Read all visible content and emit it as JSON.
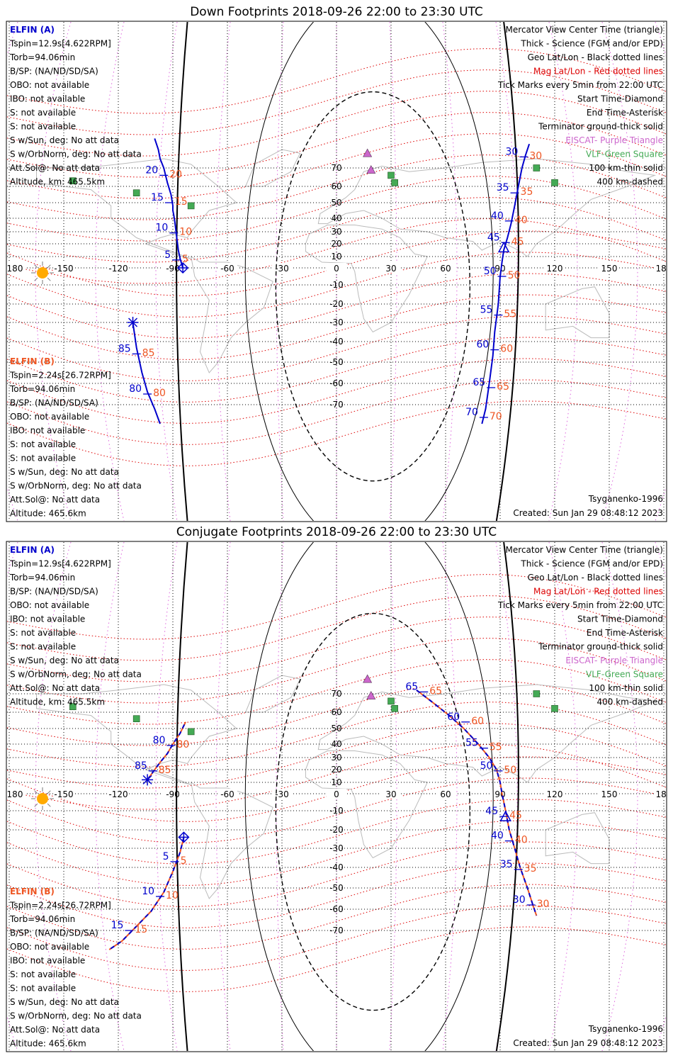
{
  "colors": {
    "track_a": "#0000cc",
    "track_b": "#ee5522",
    "elfin_b_text": "#ee5522",
    "mag_grid": "#dd0000",
    "geo_grid": "#000000",
    "eiscat": "#cc66cc",
    "vlf": "#44aa55",
    "sun": "#ffaa00",
    "coast": "#bbbbbb"
  },
  "panels": [
    {
      "title": "Down Footprints 2018-09-26 22:00 to 23:30 UTC",
      "left_info_a": [
        "ELFIN (A)",
        "Tspin=12.9s[4.622RPM]",
        "Torb=94.06min",
        "B/SP: (NA/ND/SD/SA)",
        "OBO: not available",
        "IBO: not available",
        "S: not available",
        "S: not available",
        "S w/Sun, deg: No att data",
        "S w/OrbNorm, deg: No att data",
        "Att.Sol@: No att data",
        "Altitude, km: 465.5km"
      ],
      "left_info_b": [
        "ELFIN (B)",
        "Tspin=2.24s[26.72RPM]",
        "Torb=94.06min",
        "B/SP: (NA/ND/SD/SA)",
        "OBO: not available",
        "IBO: not available",
        "S: not available",
        "S: not available",
        "S w/Sun, deg: No att data",
        "S w/OrbNorm, deg: No att data",
        "Att.Sol@: No att data",
        "Altitude: 465.6km"
      ],
      "legend": [
        "Mercator View Center Time (triangle)",
        "Thick - Science (FGM and/or EPD)",
        "Geo Lat/Lon - Black dotted lines",
        "Mag Lat/Lon - Red dotted lines",
        "Tick Marks every 5min from 22:00 UTC",
        "Start Time-Diamond",
        "End Time-Asterisk",
        "Terminator ground-thick solid",
        "EISCAT- Purple Triangle",
        "VLF-Green Square",
        "100 km-thin solid",
        "400 km-dashed"
      ],
      "model": "Tsyganenko-1996",
      "created": "Created: Sun Jan 29 08:48:12 2023",
      "lon_ticks": [
        "180",
        "-150",
        "-120",
        "-90",
        "-60",
        "-30",
        "0",
        "30",
        "60",
        "90",
        "120",
        "150",
        "180"
      ],
      "lat_ticks": [
        "70",
        "60",
        "50",
        "40",
        "30",
        "20",
        "10",
        "-10",
        "-20",
        "-30",
        "-40",
        "-50",
        "-60",
        "-70"
      ],
      "track_a": {
        "points": [
          [
            -100,
            86
          ],
          [
            -98,
            80
          ],
          [
            -97,
            75
          ],
          [
            -95,
            70
          ],
          [
            -93,
            62
          ],
          [
            -91,
            55
          ],
          [
            -90,
            48
          ],
          [
            -90,
            45
          ],
          [
            -89.5,
            42
          ],
          [
            -89,
            38
          ],
          [
            -88.5,
            33
          ],
          [
            -88,
            27
          ],
          [
            -87.5,
            21
          ],
          [
            -87,
            15
          ],
          [
            -86,
            8
          ],
          [
            -84.5,
            0
          ]
        ],
        "ticks": [
          {
            "label": "5",
            "lon": -88,
            "lat": 7
          },
          {
            "label": "10",
            "lon": -89.5,
            "lat": 29
          },
          {
            "label": "15",
            "lon": -92,
            "lat": 50
          },
          {
            "label": "20",
            "lon": -95,
            "lat": 66
          }
        ],
        "start": [
          -84.5,
          0
        ]
      },
      "track_a2": {
        "points": [
          [
            106,
            83
          ],
          [
            104,
            77
          ],
          [
            102,
            70
          ],
          [
            100,
            60
          ],
          [
            98,
            48
          ],
          [
            96,
            36
          ],
          [
            94,
            25
          ],
          [
            92,
            15
          ],
          [
            91,
            5
          ],
          [
            90,
            -5
          ],
          [
            89,
            -20
          ],
          [
            87,
            -35
          ],
          [
            86,
            -47
          ],
          [
            84,
            -60
          ],
          [
            82,
            -72
          ],
          [
            80,
            -79
          ]
        ],
        "ticks": [
          {
            "label": "30",
            "lon": 103,
            "lat": 76
          },
          {
            "label": "35",
            "lon": 98,
            "lat": 56
          },
          {
            "label": "40",
            "lon": 95,
            "lat": 38
          },
          {
            "label": "45",
            "lon": 93,
            "lat": 21
          },
          {
            "label": "50",
            "lon": 91,
            "lat": -5
          },
          {
            "label": "55",
            "lon": 89,
            "lat": -26
          },
          {
            "label": "60",
            "lon": 87,
            "lat": -44
          },
          {
            "label": "65",
            "lon": 85,
            "lat": -62
          },
          {
            "label": "70",
            "lon": 81,
            "lat": -76
          }
        ],
        "center": [
          92,
          17
        ]
      },
      "track_b": {
        "points": [
          [
            -112,
            -30
          ],
          [
            -110,
            -43
          ],
          [
            -107,
            -55
          ],
          [
            -104,
            -64
          ],
          [
            -100,
            -72
          ],
          [
            -97,
            -79
          ]
        ],
        "ticks": [
          {
            "label": "85",
            "lon": -110,
            "lat": -46
          },
          {
            "label": "80",
            "lon": -104,
            "lat": -65
          }
        ],
        "end": [
          -112,
          -30
        ]
      }
    },
    {
      "title": "Conjugate Footprints 2018-09-26 22:00 to 23:30 UTC",
      "left_info_a": [
        "ELFIN (A)",
        "Tspin=12.9s[4.622RPM]",
        "Torb=94.06min",
        "B/SP: (NA/ND/SD/SA)",
        "OBO: not available",
        "IBO: not available",
        "S: not available",
        "S: not available",
        "S w/Sun, deg: No att data",
        "S w/OrbNorm, deg: No att data",
        "Att.Sol@: No att data",
        "Altitude, km: 465.5km"
      ],
      "left_info_b": [
        "ELFIN (B)",
        "Tspin=2.24s[26.72RPM]",
        "Torb=94.06min",
        "B/SP: (NA/ND/SD/SA)",
        "OBO: not available",
        "IBO: not available",
        "S: not available",
        "S: not available",
        "S w/Sun, deg: No att data",
        "S w/OrbNorm, deg: No att data",
        "Att.Sol@: No att data",
        "Altitude: 465.6km"
      ],
      "legend": [
        "Mercator View Center Time (triangle)",
        "Thick - Science (FGM and/or EPD)",
        "Geo Lat/Lon - Black dotted lines",
        "Mag Lat/Lon - Red dotted lines",
        "Tick Marks every 5min from 22:00 UTC",
        "Start Time-Diamond",
        "End Time-Asterisk",
        "Terminator ground-thick solid",
        "EISCAT- Purple Triangle",
        "VLF-Green Square",
        "100 km-thin solid",
        "400 km-dashed"
      ],
      "model": "Tsyganenko-1996",
      "created": "Created: Sun Jan 29 08:48:12 2023",
      "lon_ticks": [
        "180",
        "-150",
        "-120",
        "-90",
        "-60",
        "-30",
        "0",
        "30",
        "60",
        "90",
        "120",
        "150",
        "180"
      ],
      "lat_ticks": [
        "70",
        "60",
        "50",
        "40",
        "30",
        "20",
        "10",
        "-10",
        "-20",
        "-30",
        "-40",
        "-50",
        "-60",
        "-70"
      ],
      "track_a": {
        "points": [
          [
            -84,
            -24
          ],
          [
            -86,
            -32
          ],
          [
            -90,
            -42
          ],
          [
            -95,
            -52
          ],
          [
            -102,
            -61
          ],
          [
            -110,
            -68
          ],
          [
            -118,
            -75
          ],
          [
            -125,
            -79
          ]
        ],
        "ticks": [
          {
            "label": "5",
            "lon": -89,
            "lat": -37
          },
          {
            "label": "10",
            "lon": -97,
            "lat": -54
          },
          {
            "label": "15",
            "lon": -114,
            "lat": -70
          }
        ],
        "start": [
          -84,
          -24
        ]
      },
      "track_a2": {
        "points": [
          [
            44,
            72
          ],
          [
            52,
            66
          ],
          [
            62,
            58
          ],
          [
            70,
            50
          ],
          [
            78,
            40
          ],
          [
            84,
            30
          ],
          [
            88,
            20
          ],
          [
            90,
            10
          ],
          [
            91,
            0
          ],
          [
            93,
            -10
          ],
          [
            95,
            -20
          ],
          [
            98,
            -30
          ],
          [
            101,
            -40
          ],
          [
            105,
            -50
          ],
          [
            108,
            -58
          ],
          [
            110,
            -63
          ]
        ],
        "ticks": [
          {
            "label": "65",
            "lon": 48,
            "lat": 71
          },
          {
            "label": "60",
            "lon": 71,
            "lat": 54
          },
          {
            "label": "55",
            "lon": 81,
            "lat": 37
          },
          {
            "label": "50",
            "lon": 89,
            "lat": 19
          },
          {
            "label": "45",
            "lon": 92,
            "lat": -13
          },
          {
            "label": "40",
            "lon": 95,
            "lat": -26
          },
          {
            "label": "35",
            "lon": 100,
            "lat": -41
          },
          {
            "label": "30",
            "lon": 107,
            "lat": -58
          }
        ],
        "center": [
          93,
          -13
        ]
      },
      "track_b": {
        "points": [
          [
            -104,
            12
          ],
          [
            -101,
            18
          ],
          [
            -97,
            26
          ],
          [
            -93,
            33
          ],
          [
            -90,
            40
          ],
          [
            -86,
            47
          ],
          [
            -83,
            54
          ]
        ],
        "ticks": [
          {
            "label": "85",
            "lon": -101,
            "lat": 19
          },
          {
            "label": "80",
            "lon": -91,
            "lat": 39
          }
        ],
        "end": [
          -104,
          12
        ]
      }
    }
  ]
}
